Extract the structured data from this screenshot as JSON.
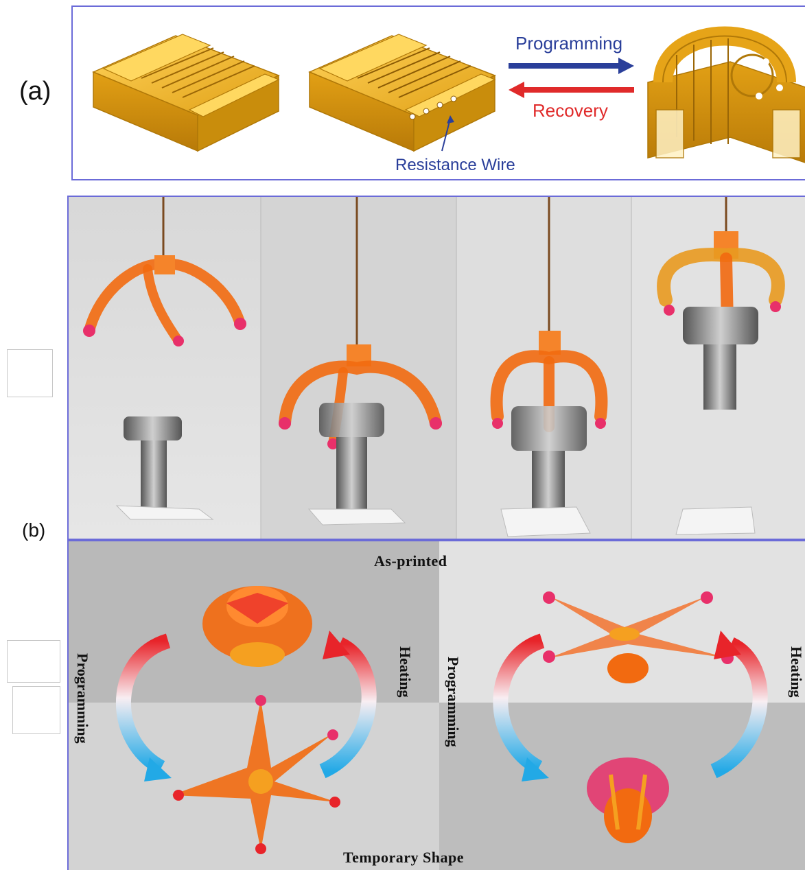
{
  "panel_a": {
    "label": "(a)",
    "programming_label": "Programming",
    "recovery_label": "Recovery",
    "wire_label": "Resistance Wire",
    "colors": {
      "programming": "#2a3f9a",
      "recovery": "#e02a2a",
      "wire_text": "#2a3f9a",
      "resin": "#e8a818"
    }
  },
  "panel_b": {
    "label": "(b)",
    "as_printed": "As-printed",
    "temporary_shape": "Temporary Shape",
    "left_cycle": {
      "programming": "Programming",
      "heating": "Heating"
    },
    "right_cycle": {
      "programming": "Programming",
      "heating": "Heating"
    },
    "colors": {
      "gripper": "#f26a10",
      "tip": "#e8306a",
      "arrow_red": "#e8242a",
      "arrow_blue": "#22a9e6"
    }
  }
}
